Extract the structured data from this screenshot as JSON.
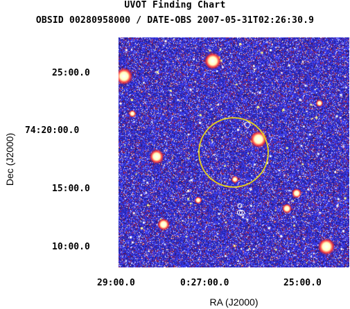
{
  "chart": {
    "title": "UVOT Finding Chart",
    "subtitle": "OBSID 00280958000 / DATE-OBS 2007-05-31T02:26:30.9",
    "xlabel": "RA (J2000)",
    "ylabel": "Dec (J2000)",
    "x_ticks": [
      "29:00.0",
      "0:27:00.0",
      "25:00.0"
    ],
    "y_ticks": [
      "25:00.0",
      "74:20:00.0",
      "15:00.0",
      "10:00.0"
    ]
  },
  "colors": {
    "background": "#2e2ec8",
    "noise": [
      "#1a1a8c",
      "#3a3aff",
      "#5050ff",
      "#c01818",
      "#ffffff",
      "#ffff80"
    ],
    "error_circle": "#e6d21e",
    "source_marker": "#ffffff"
  }
}
